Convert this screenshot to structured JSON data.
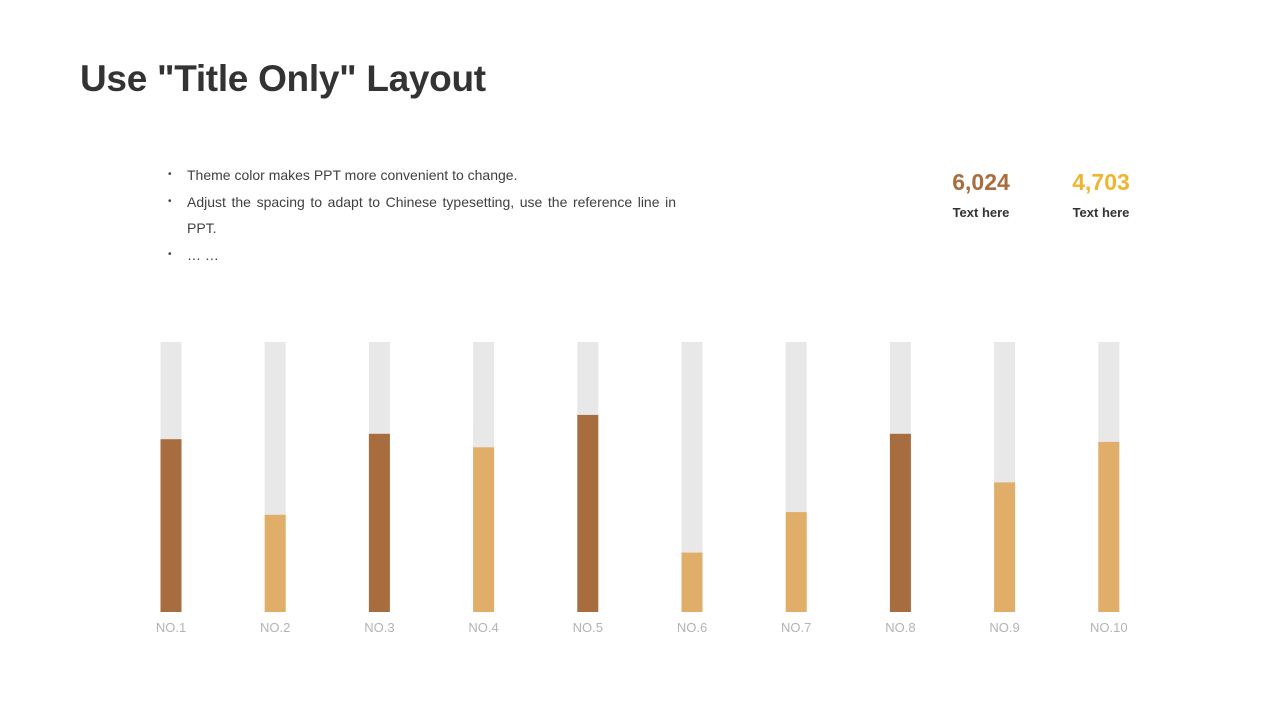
{
  "title": "Use \"Title Only\" Layout",
  "bullets": [
    "Theme  color makes PPT more convenient to change.",
    "Adjust the spacing to adapt to Chinese typesetting, use the reference line in PPT.",
    "… …"
  ],
  "bullet_symbol": "•",
  "stats": [
    {
      "value": "6,024",
      "label": "Text here",
      "color": "#a86d3f"
    },
    {
      "value": "4,703",
      "label": "Text here",
      "color": "#f0b530"
    }
  ],
  "colors": {
    "track": "#e8e8e8",
    "dark": "#a86d3f",
    "light": "#e0ae69",
    "tick": "#b3b3b3"
  },
  "chart_data": {
    "type": "bar",
    "categories": [
      "NO.1",
      "NO.2",
      "NO.3",
      "NO.4",
      "NO.5",
      "NO.6",
      "NO.7",
      "NO.8",
      "NO.9",
      "NO.10"
    ],
    "values": [
      64,
      36,
      66,
      61,
      73,
      22,
      37,
      66,
      48,
      63
    ],
    "bar_colors": [
      "dark",
      "light",
      "dark",
      "light",
      "dark",
      "light",
      "light",
      "dark",
      "light",
      "light"
    ],
    "ylim": [
      0,
      100
    ],
    "grid": false,
    "legend": "none"
  }
}
